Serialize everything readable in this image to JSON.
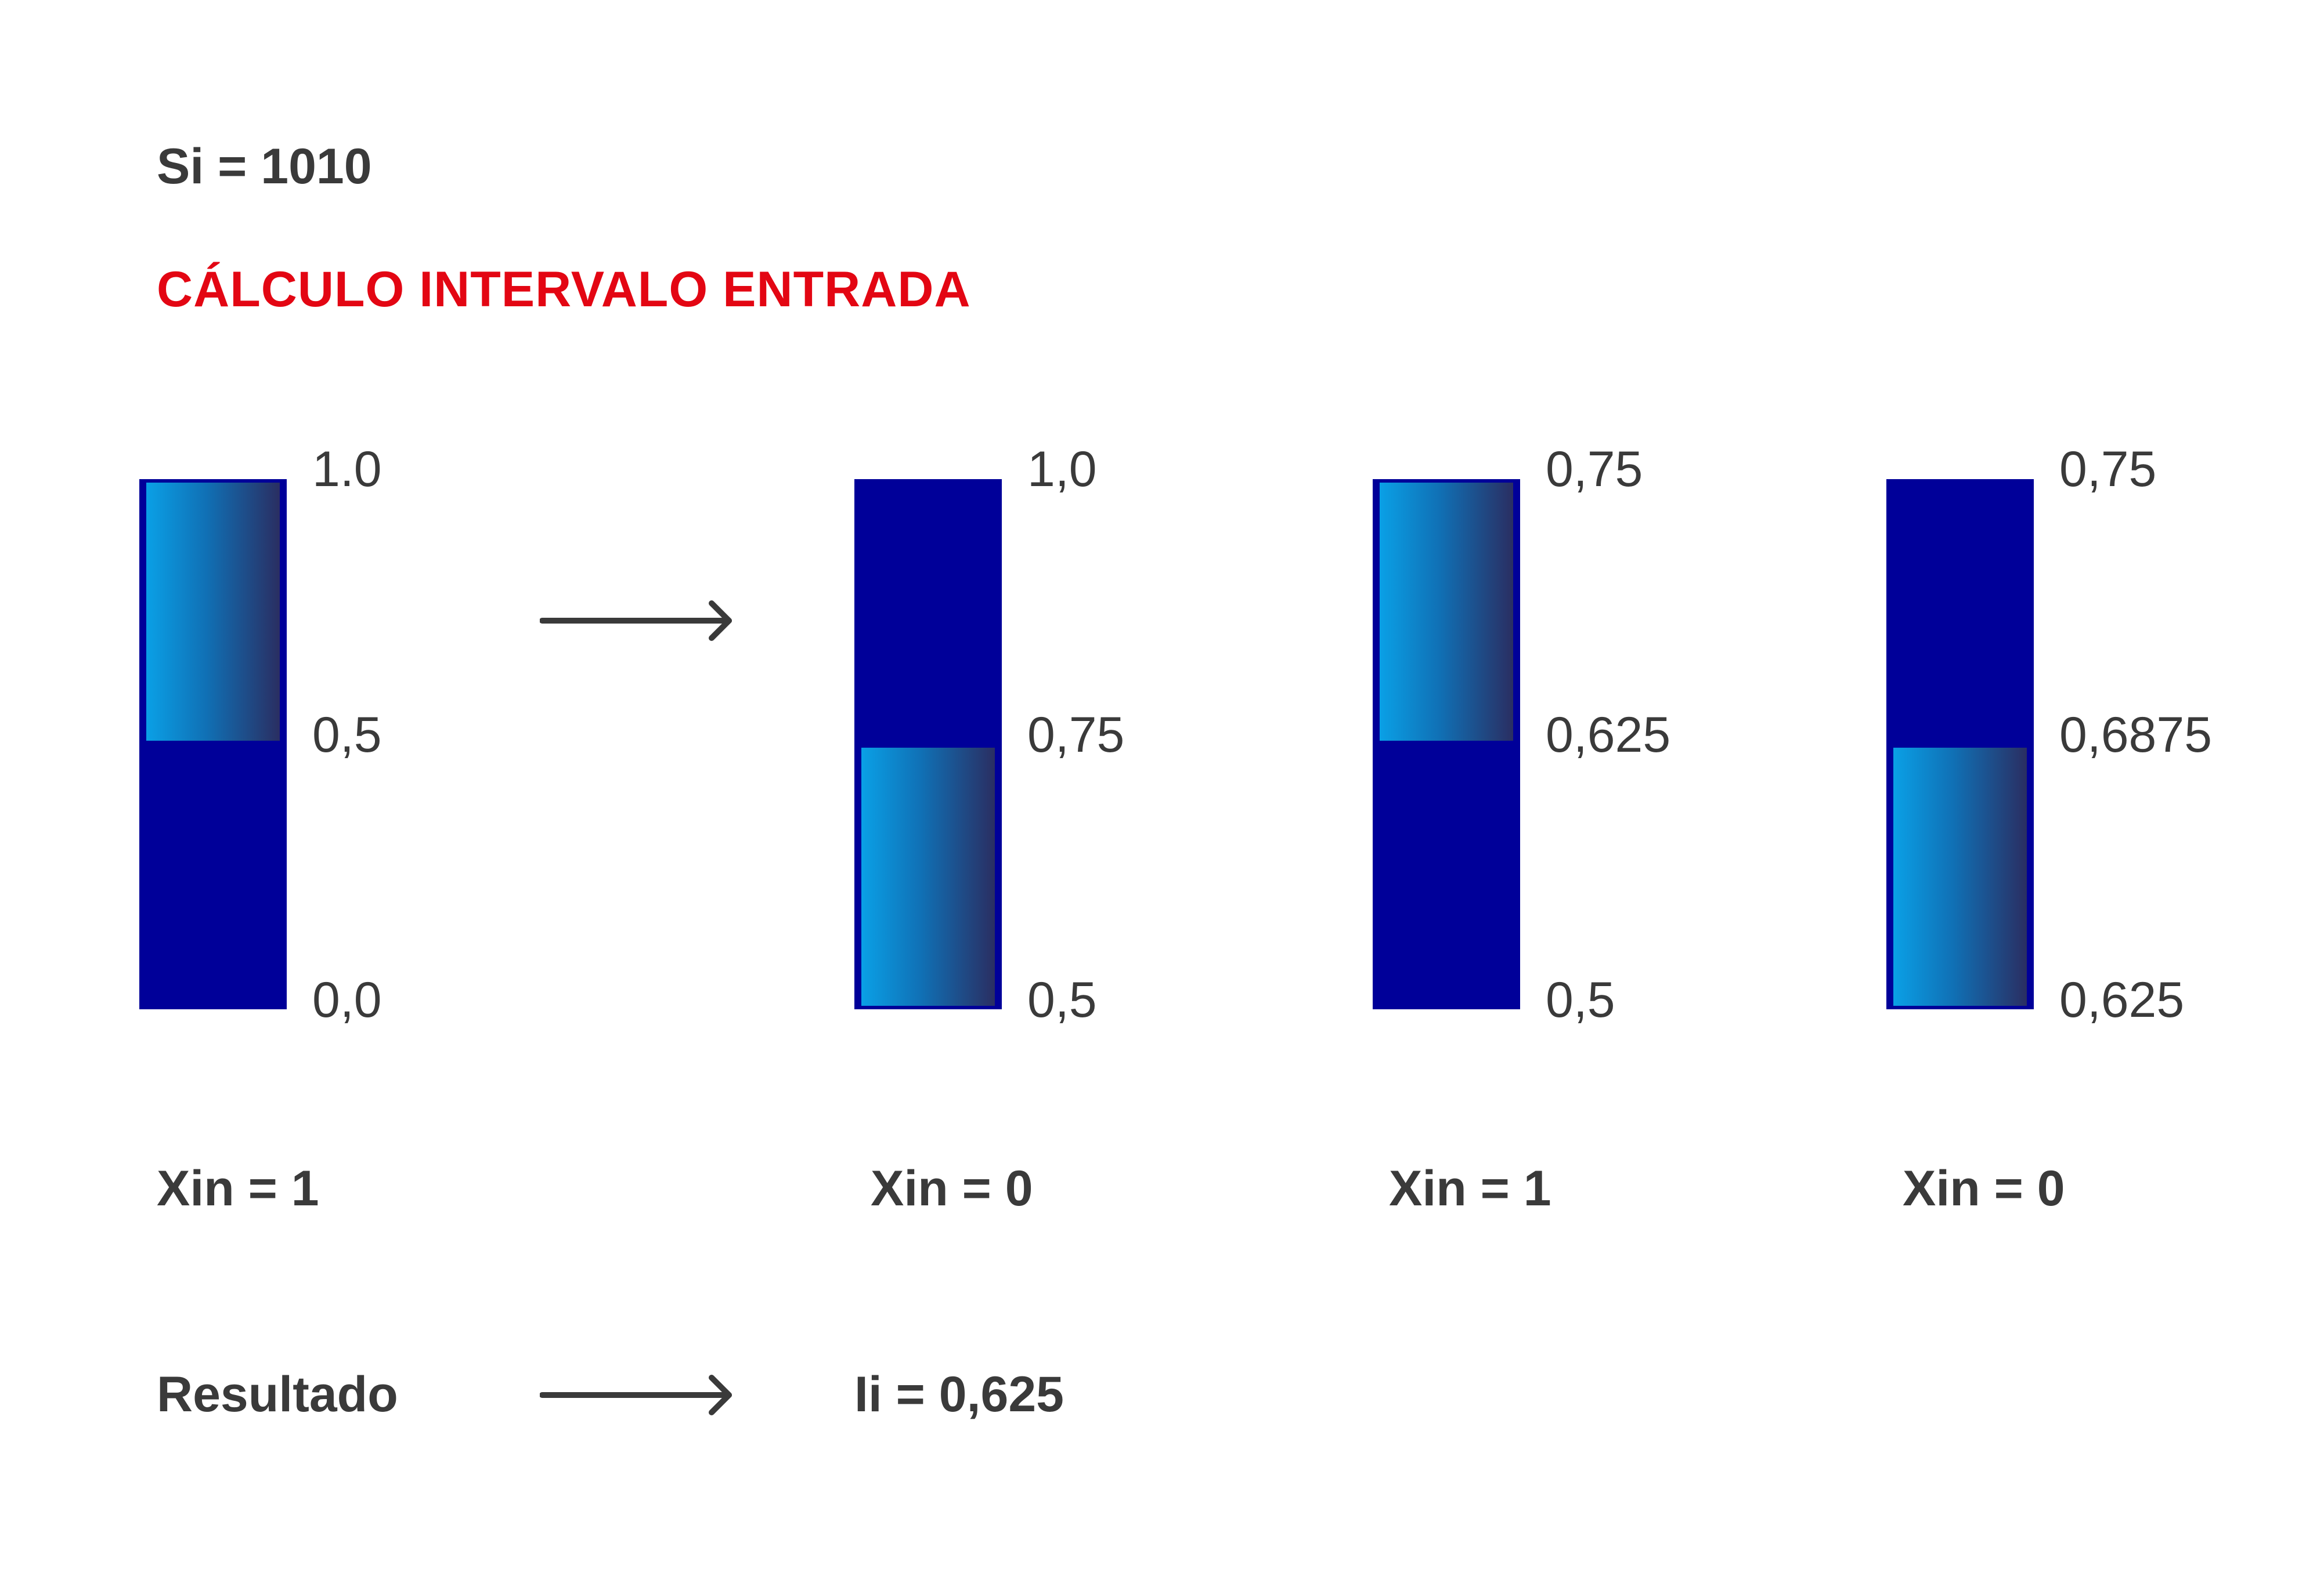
{
  "header": {
    "si_label": "Si = 1010",
    "heading": "CÁLCULO INTERVALO ENTRADA"
  },
  "colors": {
    "heading": "#e30613",
    "bar_fill": "#000099",
    "gradient_start": "#0aa0e6",
    "gradient_end": "#2a2e62",
    "text": "#3a3a3a"
  },
  "steps": [
    {
      "ticks": {
        "top": "1.0",
        "mid": "0,5",
        "bottom": "0,0"
      },
      "highlighted_half": "upper",
      "xin_label": "Xin = 1"
    },
    {
      "ticks": {
        "top": "1,0",
        "mid": "0,75",
        "bottom": "0,5"
      },
      "highlighted_half": "lower",
      "xin_label": "Xin = 0"
    },
    {
      "ticks": {
        "top": "0,75",
        "mid": "0,625",
        "bottom": "0,5"
      },
      "highlighted_half": "upper",
      "xin_label": "Xin = 1"
    },
    {
      "ticks": {
        "top": "0,75",
        "mid": "0,6875",
        "bottom": "0,625"
      },
      "highlighted_half": "lower",
      "xin_label": "Xin = 0"
    }
  ],
  "result": {
    "label": "Resultado",
    "value": "Ii = 0,625"
  }
}
